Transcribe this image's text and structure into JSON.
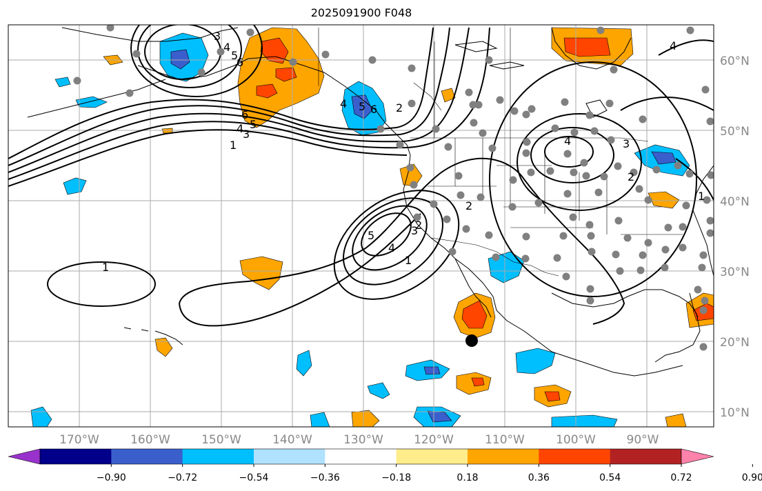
{
  "title": "2025091900 F048",
  "lat_labels": [
    "60°N",
    "50°N",
    "40°N",
    "30°N",
    "20°N",
    "10°N"
  ],
  "lon_labels": [
    "170°W",
    "160°W",
    "150°W",
    "140°W",
    "130°W",
    "120°W",
    "110°W",
    "100°W",
    "90°W"
  ],
  "colorbar": {
    "ticks": [
      "−0.90",
      "−0.72",
      "−0.54",
      "−0.36",
      "−0.18",
      "0.18",
      "0.36",
      "0.54",
      "0.72",
      "0.90"
    ],
    "colors": [
      "#9932cc",
      "#00008b",
      "#3a5fcd",
      "#00bfff",
      "#b0e2ff",
      "#ffffff",
      "#ffec8b",
      "#ffa500",
      "#ff4500",
      "#b22222",
      "#ff82ab"
    ]
  },
  "contour_labels": [
    "3",
    "4",
    "5",
    "6",
    "6",
    "5",
    "4",
    "3",
    "1",
    "4",
    "5",
    "6",
    "2",
    "4",
    "3",
    "2",
    "2",
    "1",
    "5",
    "4",
    "3",
    "2",
    "1",
    "1",
    "4"
  ],
  "styles": {
    "grid_color": "#aaaaaa",
    "station_color": "#808080",
    "contour_color": "#000000"
  }
}
